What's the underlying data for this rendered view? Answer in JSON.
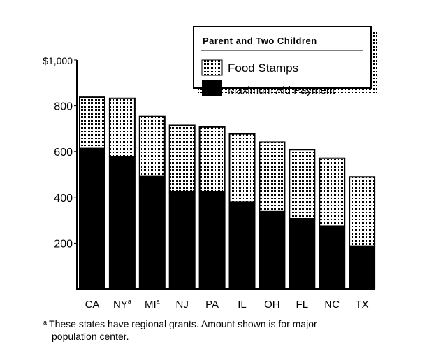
{
  "chart_data": {
    "type": "bar",
    "stacked": true,
    "title": "",
    "xlabel": "",
    "ylabel": "",
    "ylim": [
      0,
      1000
    ],
    "yticks": [
      200,
      400,
      600,
      800,
      1000
    ],
    "ytick_labels": [
      "200",
      "400",
      "600",
      "800",
      "$1,000"
    ],
    "categories": [
      "CA",
      "NY",
      "MI",
      "NJ",
      "PA",
      "IL",
      "OH",
      "FL",
      "NC",
      "TX"
    ],
    "category_superscripts": [
      "",
      "a",
      "a",
      "",
      "",
      "",
      "",
      "",
      "",
      ""
    ],
    "series": [
      {
        "name": "Maximum Aid Payment",
        "values": [
          614,
          579,
          492,
          425,
          425,
          380,
          339,
          305,
          273,
          187
        ]
      },
      {
        "name": "Food Stamps",
        "values": [
          224,
          254,
          262,
          290,
          283,
          298,
          303,
          304,
          298,
          303
        ]
      }
    ],
    "legend": {
      "title": "Parent and Two Children",
      "entries": [
        "Food Stamps",
        "Maximum Aid Payment"
      ],
      "placement": "top-right"
    },
    "grid": false
  },
  "footnote": {
    "marker": "a",
    "line1": "These states have regional grants. Amount shown is for major",
    "line2": "population center."
  }
}
